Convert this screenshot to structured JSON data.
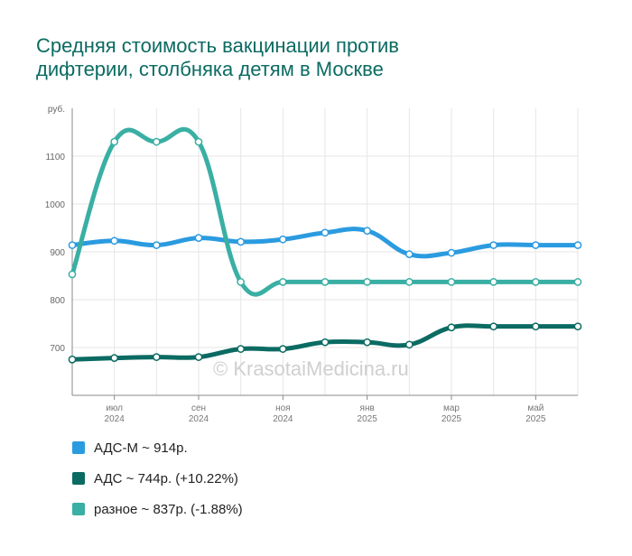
{
  "title_lines": [
    "Средняя стоимость вакцинации против",
    "дифтерии, столбняка детям в Москве"
  ],
  "watermark": "© KrasotaiMedicina.ru",
  "chart_data": {
    "type": "line",
    "ylabel": "руб.",
    "ylim": [
      600,
      1200
    ],
    "yticks": [
      700,
      800,
      900,
      1000,
      1100
    ],
    "x": [
      "2024-05",
      "2024-06",
      "2024-07",
      "2024-08",
      "2024-09",
      "2024-10",
      "2024-11",
      "2024-12",
      "2025-01",
      "2025-02",
      "2025-03",
      "2025-04",
      "2025-05"
    ],
    "xtick_labels": [
      {
        "x": "2024-06",
        "month": "июл",
        "year": "2024"
      },
      {
        "x": "2024-08",
        "month": "сен",
        "year": "2024"
      },
      {
        "x": "2024-10",
        "month": "ноя",
        "year": "2024"
      },
      {
        "x": "2024-12",
        "month": "янв",
        "year": "2025"
      },
      {
        "x": "2025-02",
        "month": "мар",
        "year": "2025"
      },
      {
        "x": "2025-04",
        "month": "май",
        "year": "2025"
      }
    ],
    "grid": true,
    "legend_position": "bottom-left",
    "series": [
      {
        "name": "АДС-М",
        "color": "#2b9be0",
        "values": [
          914,
          923,
          914,
          929,
          921,
          926,
          940,
          944,
          895,
          898,
          914,
          914,
          914
        ],
        "legend": "АДС-М ~ 914р."
      },
      {
        "name": "АДС",
        "color": "#0b6b62",
        "values": [
          675,
          678,
          680,
          680,
          697,
          697,
          711,
          711,
          706,
          742,
          744,
          744,
          744
        ],
        "legend": "АДС ~ 744р. (+10.22%)"
      },
      {
        "name": "разное",
        "color": "#3aafa4",
        "values": [
          853,
          1130,
          1130,
          1130,
          837,
          837,
          837,
          837,
          837,
          837,
          837,
          837,
          837
        ],
        "legend": "разное ~ 837р. (-1.88%)"
      }
    ]
  }
}
